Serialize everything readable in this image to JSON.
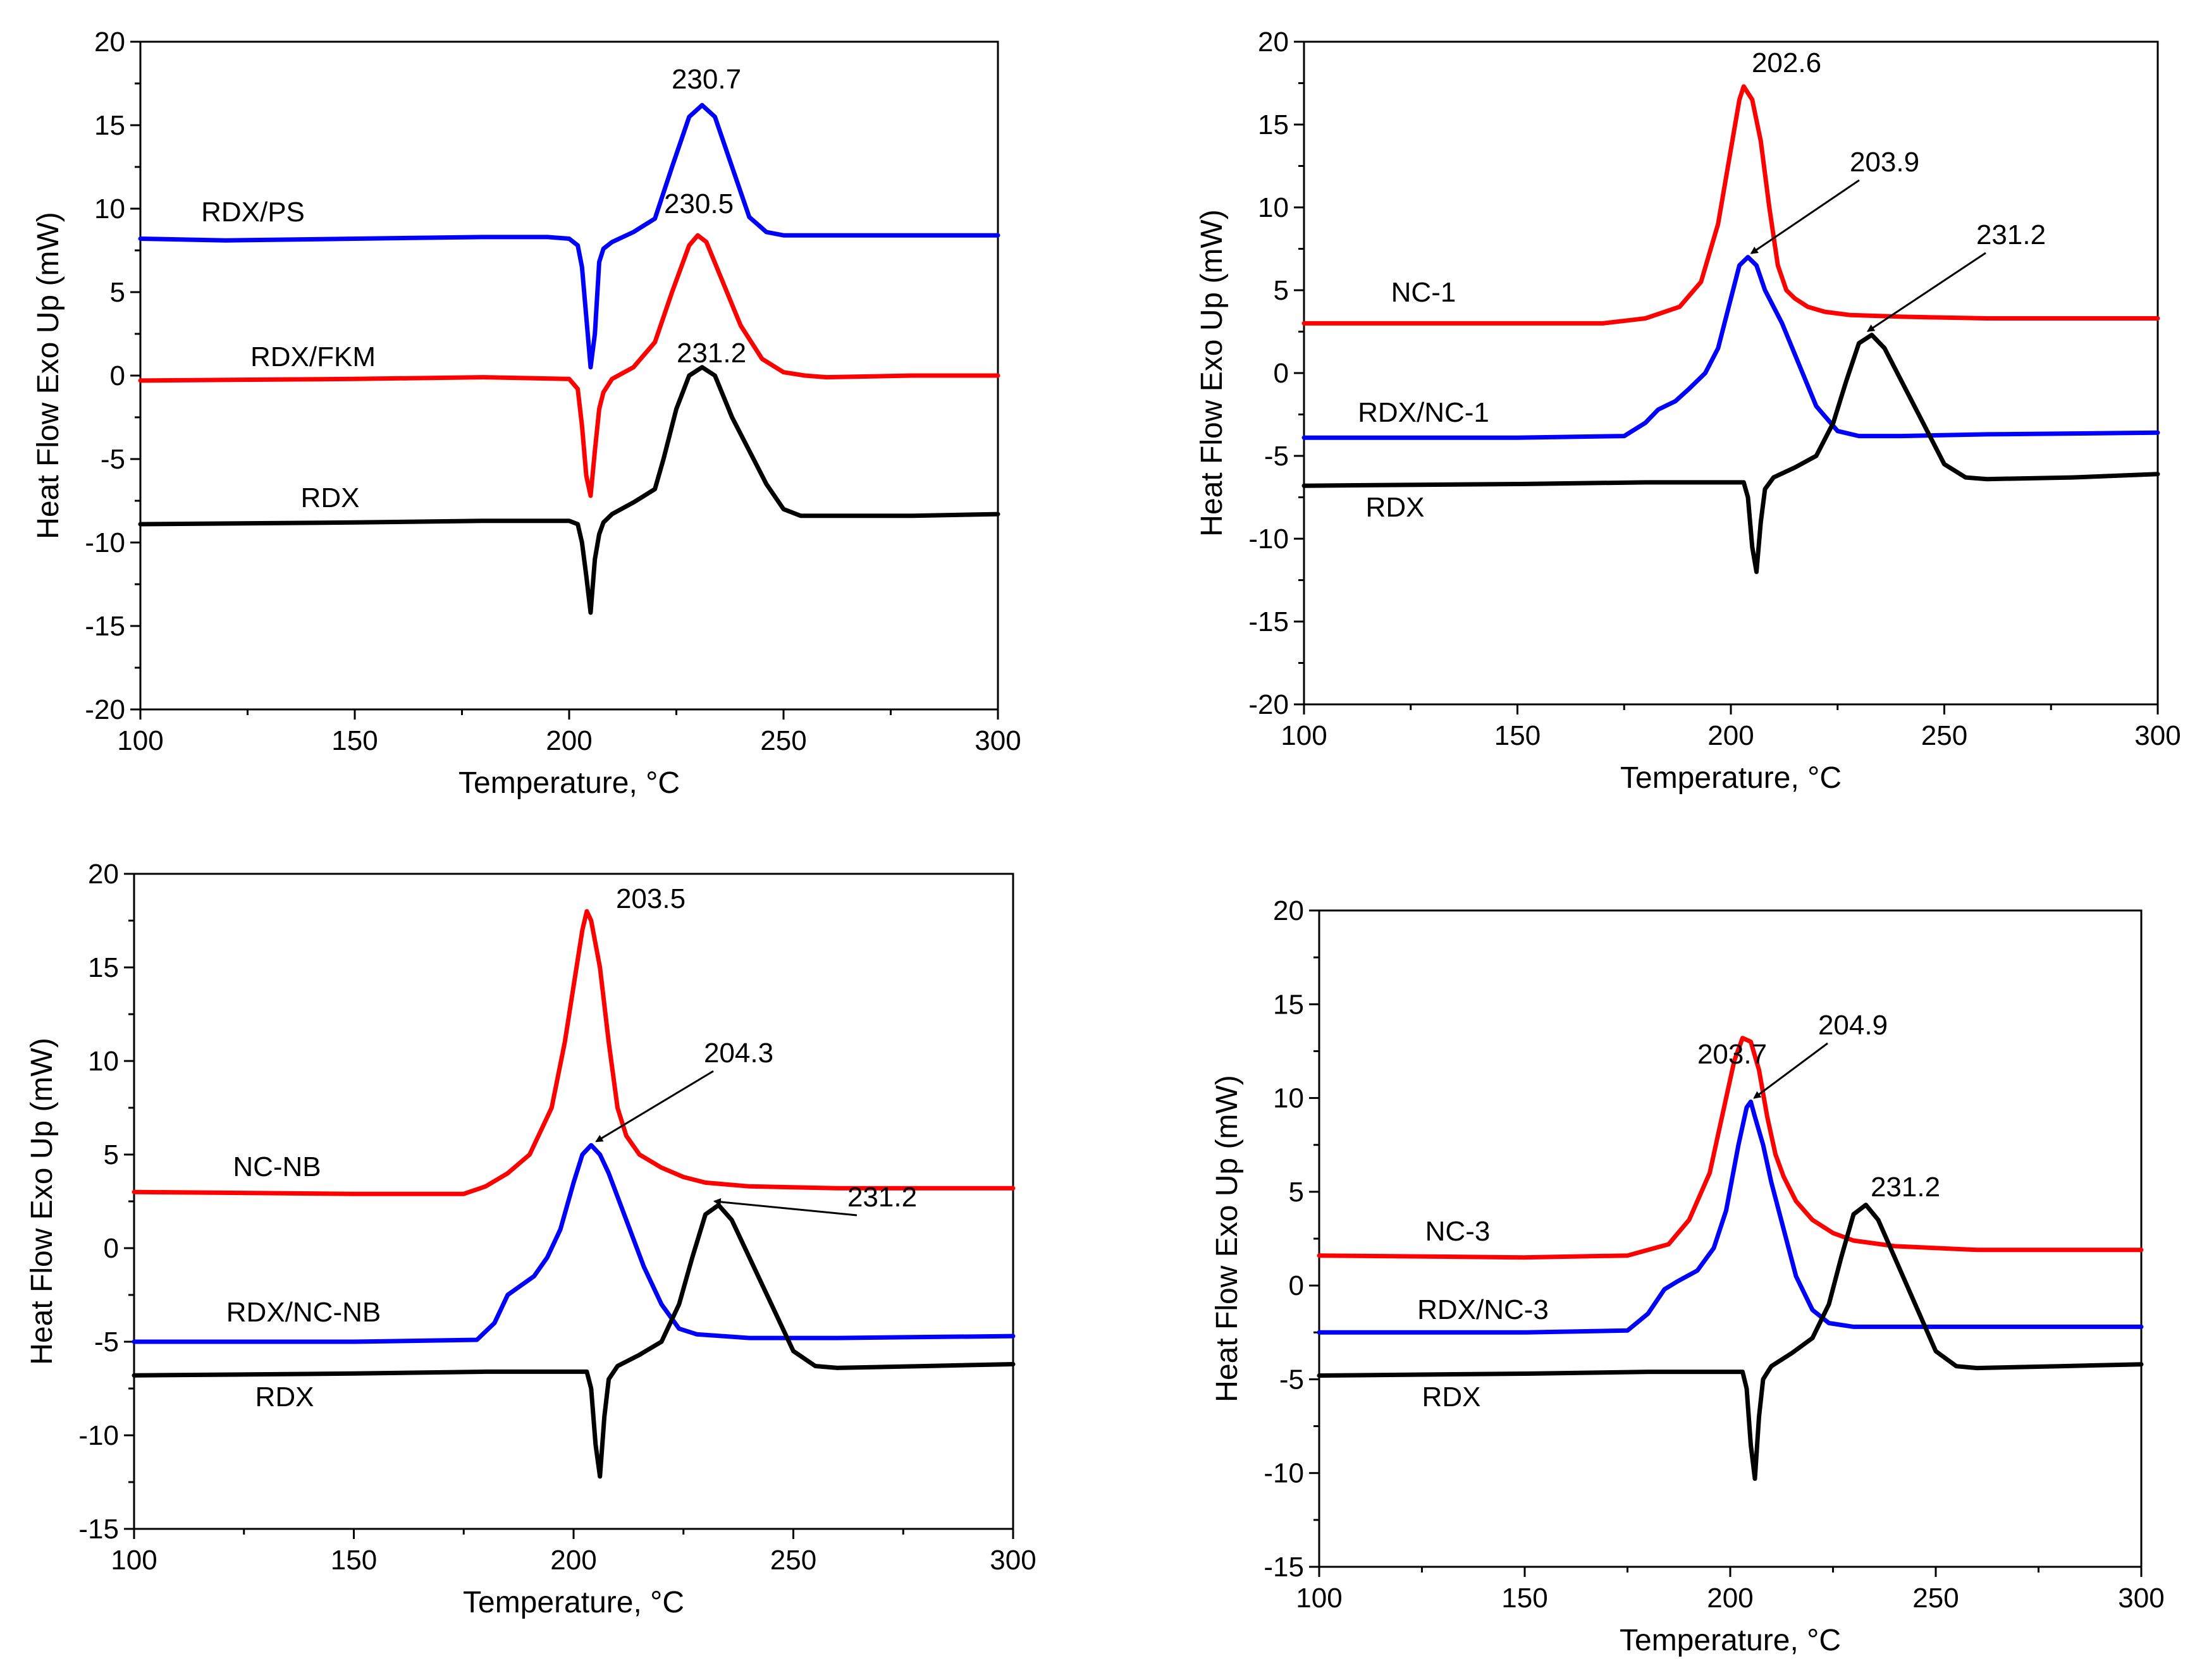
{
  "chart_data": [
    {
      "type": "line",
      "xlabel": "Temperature, °C",
      "ylabel": "Heat Flow Exo Up (mW)",
      "xlim": [
        100,
        300
      ],
      "ylim": [
        -20,
        20
      ],
      "xticks": [
        100,
        150,
        200,
        250,
        300
      ],
      "yticks": [
        -20,
        -15,
        -10,
        -5,
        0,
        5,
        10,
        15,
        20
      ],
      "series": [
        {
          "name": "RDX/PS",
          "color": "#0000ff",
          "x": [
            100,
            120,
            150,
            180,
            195,
            200,
            202,
            203,
            204,
            205,
            206,
            207,
            208,
            210,
            215,
            220,
            224,
            228,
            231,
            234,
            238,
            242,
            246,
            250,
            260,
            280,
            300
          ],
          "y": [
            8.2,
            8.1,
            8.2,
            8.3,
            8.3,
            8.2,
            7.8,
            6.5,
            3.5,
            0.5,
            2.5,
            6.8,
            7.6,
            8.0,
            8.6,
            9.4,
            12.5,
            15.5,
            16.2,
            15.5,
            12.5,
            9.5,
            8.6,
            8.4,
            8.4,
            8.4,
            8.4
          ]
        },
        {
          "name": "RDX/FKM",
          "color": "#ff0000",
          "x": [
            100,
            150,
            180,
            200,
            202,
            203,
            204,
            205,
            206,
            207,
            208,
            210,
            215,
            220,
            224,
            228,
            230,
            232,
            236,
            240,
            245,
            250,
            255,
            260,
            280,
            300
          ],
          "y": [
            -0.3,
            -0.2,
            -0.1,
            -0.2,
            -0.8,
            -3,
            -6,
            -7.2,
            -4.5,
            -2,
            -1,
            -0.2,
            0.5,
            2,
            5,
            7.8,
            8.4,
            8,
            5.5,
            3,
            1,
            0.2,
            0,
            -0.1,
            0,
            0
          ]
        },
        {
          "name": "RDX",
          "color": "#000000",
          "x": [
            100,
            150,
            180,
            200,
            202,
            203,
            204,
            205,
            206,
            207,
            208,
            210,
            215,
            220,
            222,
            225,
            228,
            231,
            234,
            238,
            242,
            246,
            250,
            254,
            258,
            262,
            280,
            300
          ],
          "y": [
            -8.9,
            -8.8,
            -8.7,
            -8.7,
            -8.9,
            -10,
            -12,
            -14.2,
            -11,
            -9.5,
            -8.8,
            -8.3,
            -7.6,
            -6.8,
            -5,
            -2,
            0,
            0.5,
            0,
            -2.5,
            -4.5,
            -6.5,
            -8,
            -8.4,
            -8.4,
            -8.4,
            -8.4,
            -8.3
          ]
        }
      ],
      "curve_labels": [
        "RDX/PS",
        "RDX/FKM",
        "RDX"
      ],
      "annotations": [
        {
          "text": "230.7",
          "x": 230.7,
          "y": 16.2,
          "arrow": false
        },
        {
          "text": "230.5",
          "x": 230.5,
          "y": 8.4,
          "arrow": false
        },
        {
          "text": "231.2",
          "x": 231.2,
          "y": 0.5,
          "arrow": false
        }
      ]
    },
    {
      "type": "line",
      "xlabel": "Temperature, °C",
      "ylabel": "Heat Flow Exo Up (mW)",
      "xlim": [
        100,
        300
      ],
      "ylim": [
        -20,
        20
      ],
      "xticks": [
        100,
        150,
        200,
        250,
        300
      ],
      "yticks": [
        -20,
        -15,
        -10,
        -5,
        0,
        5,
        10,
        15,
        20
      ],
      "series": [
        {
          "name": "NC-1",
          "color": "#ff0000",
          "x": [
            100,
            150,
            170,
            180,
            188,
            193,
            197,
            200,
            202,
            203,
            205,
            207,
            209,
            211,
            213,
            215,
            218,
            222,
            228,
            240,
            260,
            300
          ],
          "y": [
            3,
            3,
            3,
            3.3,
            4,
            5.5,
            9,
            13.5,
            16.5,
            17.3,
            16.5,
            14,
            10,
            6.5,
            5,
            4.5,
            4,
            3.7,
            3.5,
            3.4,
            3.3,
            3.3
          ]
        },
        {
          "name": "RDX/NC-1",
          "color": "#0000ff",
          "x": [
            100,
            150,
            175,
            180,
            183,
            187,
            190,
            194,
            197,
            200,
            202,
            204,
            206,
            208,
            212,
            216,
            220,
            225,
            230,
            240,
            260,
            300
          ],
          "y": [
            -3.9,
            -3.9,
            -3.8,
            -3,
            -2.2,
            -1.7,
            -1,
            0,
            1.5,
            4.5,
            6.5,
            7,
            6.5,
            5,
            3,
            0.5,
            -2,
            -3.5,
            -3.8,
            -3.8,
            -3.7,
            -3.6
          ]
        },
        {
          "name": "RDX",
          "color": "#000000",
          "x": [
            100,
            150,
            180,
            203,
            204,
            205,
            206,
            207,
            208,
            210,
            215,
            220,
            224,
            227,
            230,
            233,
            236,
            240,
            245,
            250,
            255,
            260,
            280,
            300
          ],
          "y": [
            -6.8,
            -6.7,
            -6.6,
            -6.6,
            -7.5,
            -10.5,
            -12,
            -9,
            -7,
            -6.3,
            -5.7,
            -5,
            -3,
            -0.5,
            1.8,
            2.3,
            1.5,
            -0.5,
            -3,
            -5.5,
            -6.3,
            -6.4,
            -6.3,
            -6.1
          ]
        }
      ],
      "curve_labels": [
        "NC-1",
        "RDX/NC-1",
        "RDX"
      ],
      "annotations": [
        {
          "text": "202.6",
          "x": 202.6,
          "y": 17.3,
          "arrow": false
        },
        {
          "text": "203.9",
          "x": 203.9,
          "y": 7.0,
          "arrow": true
        },
        {
          "text": "231.2",
          "x": 231.2,
          "y": 2.3,
          "arrow": true
        }
      ]
    },
    {
      "type": "line",
      "xlabel": "Temperature, °C",
      "ylabel": "Heat Flow Exo Up (mW)",
      "xlim": [
        100,
        300
      ],
      "ylim": [
        -15,
        20
      ],
      "xticks": [
        100,
        150,
        200,
        250,
        300
      ],
      "yticks": [
        -15,
        -10,
        -5,
        0,
        5,
        10,
        15,
        20
      ],
      "series": [
        {
          "name": "NC-NB",
          "color": "#ff0000",
          "x": [
            100,
            150,
            175,
            180,
            185,
            190,
            195,
            198,
            200,
            202,
            203,
            204,
            206,
            208,
            210,
            212,
            215,
            220,
            225,
            230,
            240,
            260,
            300
          ],
          "y": [
            3,
            2.9,
            2.9,
            3.3,
            4,
            5,
            7.5,
            11,
            14,
            17,
            18,
            17.5,
            15,
            11,
            7.5,
            6,
            5,
            4.3,
            3.8,
            3.5,
            3.3,
            3.2,
            3.2
          ]
        },
        {
          "name": "RDX/NC-NB",
          "color": "#0000ff",
          "x": [
            100,
            150,
            178,
            182,
            185,
            188,
            191,
            194,
            197,
            200,
            202,
            204,
            206,
            208,
            212,
            216,
            220,
            224,
            228,
            240,
            260,
            300
          ],
          "y": [
            -5,
            -5,
            -4.9,
            -4,
            -2.5,
            -2,
            -1.5,
            -0.5,
            1,
            3.5,
            5,
            5.5,
            5,
            4,
            1.5,
            -1,
            -3,
            -4.3,
            -4.6,
            -4.8,
            -4.8,
            -4.7
          ]
        },
        {
          "name": "RDX",
          "color": "#000000",
          "x": [
            100,
            150,
            180,
            203,
            204,
            205,
            206,
            207,
            208,
            210,
            215,
            220,
            224,
            227,
            230,
            233,
            236,
            240,
            245,
            250,
            255,
            260,
            280,
            300
          ],
          "y": [
            -6.8,
            -6.7,
            -6.6,
            -6.6,
            -7.5,
            -10.5,
            -12.2,
            -9,
            -7,
            -6.3,
            -5.7,
            -5,
            -3,
            -0.5,
            1.8,
            2.3,
            1.5,
            -0.5,
            -3,
            -5.5,
            -6.3,
            -6.4,
            -6.3,
            -6.2
          ]
        }
      ],
      "curve_labels": [
        "NC-NB",
        "RDX/NC-NB",
        "RDX"
      ],
      "annotations": [
        {
          "text": "203.5",
          "x": 203.5,
          "y": 18.0,
          "arrow": false
        },
        {
          "text": "204.3",
          "x": 204.3,
          "y": 5.5,
          "arrow": true
        },
        {
          "text": "231.2",
          "x": 231.2,
          "y": 2.3,
          "arrow": true
        }
      ]
    },
    {
      "type": "line",
      "xlabel": "Temperature, °C",
      "ylabel": "Heat Flow Exo Up (mW)",
      "xlim": [
        100,
        300
      ],
      "ylim": [
        -15,
        20
      ],
      "xticks": [
        100,
        150,
        200,
        250,
        300
      ],
      "yticks": [
        -15,
        -10,
        -5,
        0,
        5,
        10,
        15,
        20
      ],
      "series": [
        {
          "name": "NC-3",
          "color": "#ff0000",
          "x": [
            100,
            150,
            175,
            185,
            190,
            195,
            198,
            201,
            203,
            205,
            207,
            209,
            211,
            213,
            216,
            220,
            225,
            230,
            240,
            260,
            300
          ],
          "y": [
            1.6,
            1.5,
            1.6,
            2.2,
            3.5,
            6,
            9,
            12,
            13.2,
            13,
            11.5,
            9,
            7,
            5.8,
            4.5,
            3.5,
            2.8,
            2.4,
            2.1,
            1.9,
            1.9
          ]
        },
        {
          "name": "RDX/NC-3",
          "color": "#0000ff",
          "x": [
            100,
            150,
            175,
            180,
            184,
            187,
            192,
            196,
            199,
            202,
            204,
            205,
            206,
            208,
            210,
            213,
            216,
            220,
            224,
            230,
            260,
            300
          ],
          "y": [
            -2.5,
            -2.5,
            -2.4,
            -1.5,
            -0.2,
            0.2,
            0.8,
            2,
            4,
            7.5,
            9.5,
            9.8,
            9,
            7.5,
            5.5,
            3,
            0.5,
            -1.3,
            -2,
            -2.2,
            -2.2,
            -2.2
          ]
        },
        {
          "name": "RDX",
          "color": "#000000",
          "x": [
            100,
            150,
            180,
            203,
            204,
            205,
            206,
            207,
            208,
            210,
            215,
            220,
            224,
            227,
            230,
            233,
            236,
            240,
            245,
            250,
            255,
            260,
            280,
            300
          ],
          "y": [
            -4.8,
            -4.7,
            -4.6,
            -4.6,
            -5.5,
            -8.5,
            -10.3,
            -7,
            -5,
            -4.3,
            -3.6,
            -2.8,
            -1,
            1.5,
            3.8,
            4.3,
            3.5,
            1.5,
            -1,
            -3.5,
            -4.3,
            -4.4,
            -4.3,
            -4.2
          ]
        }
      ],
      "curve_labels": [
        "NC-3",
        "RDX/NC-3",
        "RDX"
      ],
      "annotations": [
        {
          "text": "203.7",
          "x": 203.7,
          "y": 13.2,
          "arrow": false
        },
        {
          "text": "204.9",
          "x": 204.9,
          "y": 9.8,
          "arrow": true
        },
        {
          "text": "231.2",
          "x": 231.2,
          "y": 4.3,
          "arrow": false
        }
      ]
    }
  ]
}
